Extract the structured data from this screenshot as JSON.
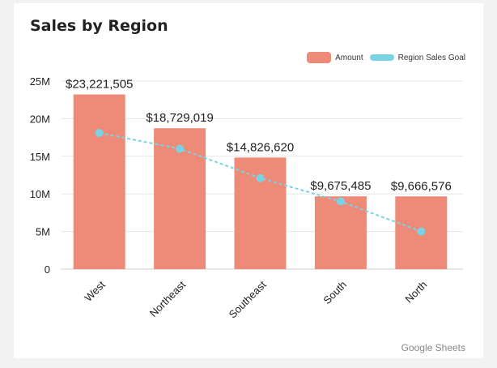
{
  "chart_data": {
    "type": "bar",
    "title": "Sales by Region",
    "categories": [
      "West",
      "Northeast",
      "Southeast",
      "South",
      "North"
    ],
    "series": [
      {
        "name": "Amount",
        "type": "bar",
        "color": "#ee8b78",
        "values": [
          23221505,
          18729019,
          14826620,
          9675485,
          9666576
        ],
        "labels": [
          "$23,221,505",
          "$18,729,019",
          "$14,826,620",
          "$9,675,485",
          "$9,666,576"
        ]
      },
      {
        "name": "Region Sales Goal",
        "type": "line",
        "style": "dashed",
        "color": "#79d3e3",
        "values": [
          18100000,
          16000000,
          12100000,
          9000000,
          5000000
        ]
      }
    ],
    "ylim": [
      0,
      25000000
    ],
    "yticks": [
      0,
      5000000,
      10000000,
      15000000,
      20000000,
      25000000
    ],
    "ytick_labels": [
      "0",
      "5M",
      "10M",
      "15M",
      "20M",
      "25M"
    ],
    "grid": true,
    "legend_position": "top-right"
  },
  "footer": {
    "source": "Google Sheets"
  }
}
